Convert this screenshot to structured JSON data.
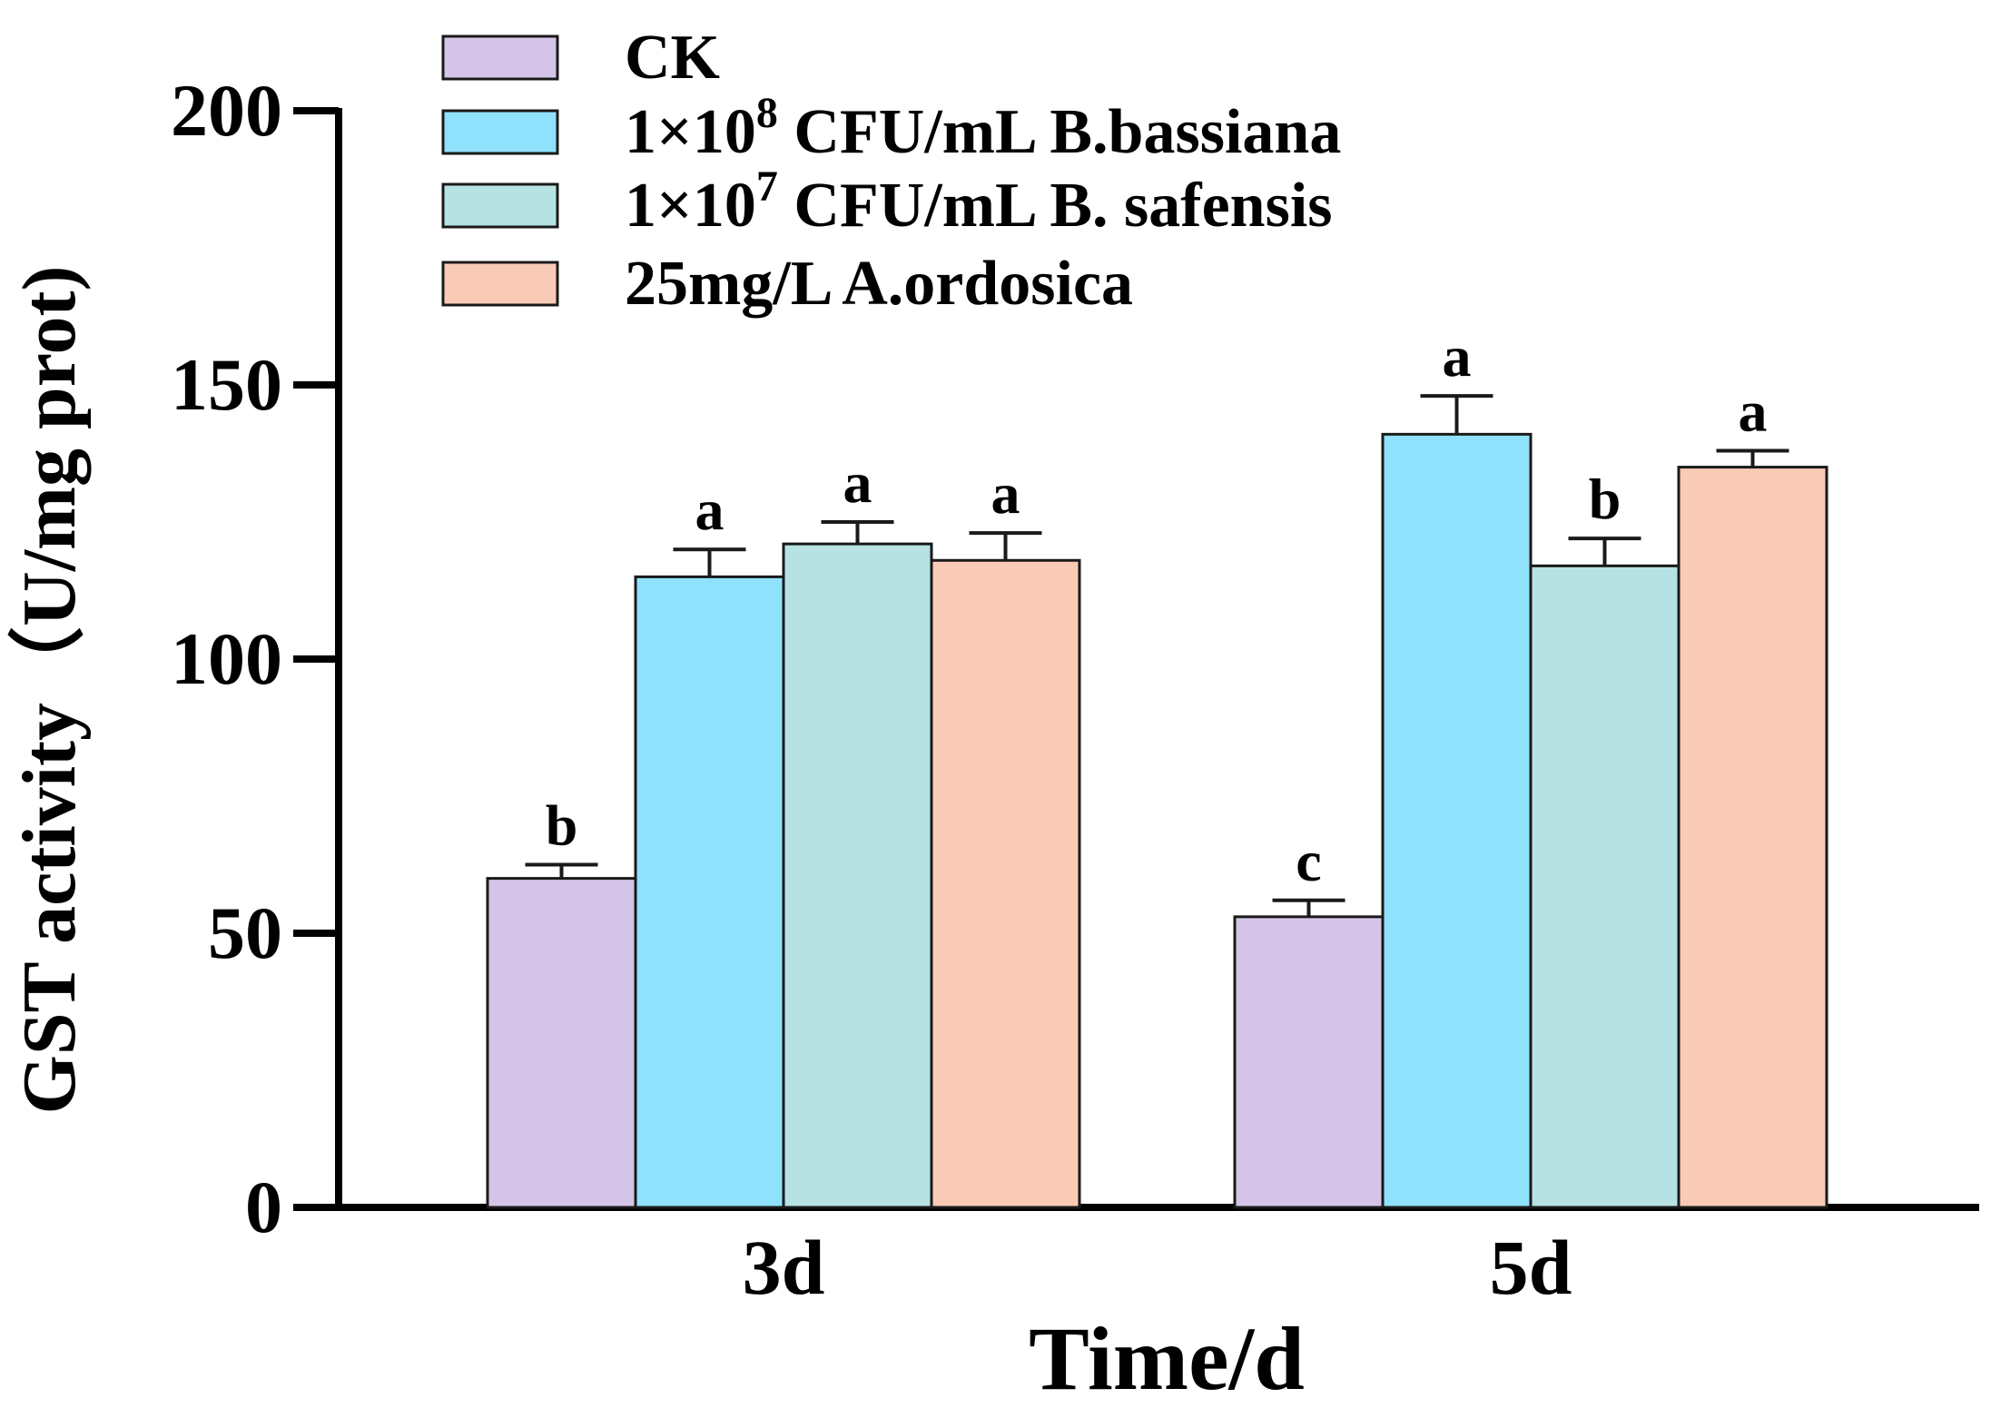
{
  "chart_data": {
    "type": "bar",
    "xlabel": "Time/d",
    "ylabel": "GST activity（U/mg prot)",
    "ylim": [
      0,
      200
    ],
    "yticks": [
      0,
      50,
      100,
      150,
      200
    ],
    "categories": [
      "3d",
      "5d"
    ],
    "legend_position": "top",
    "series": [
      {
        "name": "CK",
        "legend_parts": [
          "CK"
        ],
        "color": "#d4c5e8",
        "values": [
          60,
          53
        ],
        "errors": [
          2.5,
          3
        ],
        "labels": [
          "b",
          "c"
        ]
      },
      {
        "name": "1×10^8 CFU/mL B.bassiana",
        "legend_parts": [
          "1×10",
          "8",
          " CFU/mL B.bassiana"
        ],
        "color": "#90e1fc",
        "values": [
          115,
          141
        ],
        "errors": [
          5,
          7
        ],
        "labels": [
          "a",
          "a"
        ]
      },
      {
        "name": "1×10^7 CFU/mL B. safensis",
        "legend_parts": [
          "1×10",
          "7",
          " CFU/mL B. safensis"
        ],
        "color": "#b6e2e3",
        "values": [
          121,
          117
        ],
        "errors": [
          4,
          5
        ],
        "labels": [
          "a",
          "b"
        ]
      },
      {
        "name": "25mg/L A.ordosica",
        "legend_parts": [
          "25mg/L A.ordosica"
        ],
        "color": "#f9cbb6",
        "values": [
          118,
          135
        ],
        "errors": [
          5,
          3
        ],
        "labels": [
          "a",
          "a"
        ]
      }
    ]
  }
}
